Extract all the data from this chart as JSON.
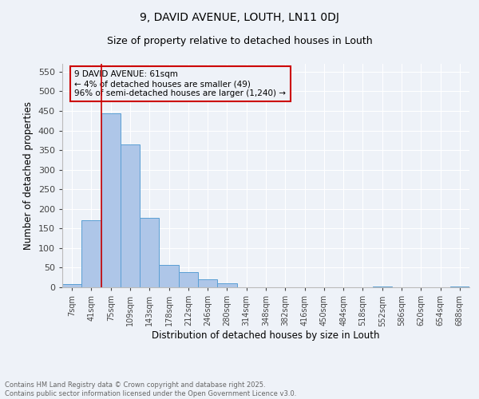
{
  "title1": "9, DAVID AVENUE, LOUTH, LN11 0DJ",
  "title2": "Size of property relative to detached houses in Louth",
  "xlabel": "Distribution of detached houses by size in Louth",
  "ylabel": "Number of detached properties",
  "bar_labels": [
    "7sqm",
    "41sqm",
    "75sqm",
    "109sqm",
    "143sqm",
    "178sqm",
    "212sqm",
    "246sqm",
    "280sqm",
    "314sqm",
    "348sqm",
    "382sqm",
    "416sqm",
    "450sqm",
    "484sqm",
    "518sqm",
    "552sqm",
    "586sqm",
    "620sqm",
    "654sqm",
    "688sqm"
  ],
  "bar_values": [
    8,
    170,
    443,
    365,
    177,
    56,
    39,
    20,
    11,
    1,
    0,
    0,
    0,
    0,
    0,
    0,
    2,
    0,
    0,
    0,
    2
  ],
  "bar_color": "#aec6e8",
  "bar_edge_color": "#5a9fd4",
  "vline_color": "#cc0000",
  "annotation_text": "9 DAVID AVENUE: 61sqm\n← 4% of detached houses are smaller (49)\n96% of semi-detached houses are larger (1,240) →",
  "annotation_box_color": "#cc0000",
  "ylim": [
    0,
    570
  ],
  "yticks": [
    0,
    50,
    100,
    150,
    200,
    250,
    300,
    350,
    400,
    450,
    500,
    550
  ],
  "footer1": "Contains HM Land Registry data © Crown copyright and database right 2025.",
  "footer2": "Contains public sector information licensed under the Open Government Licence v3.0.",
  "bg_color": "#eef2f8",
  "grid_color": "#ffffff"
}
